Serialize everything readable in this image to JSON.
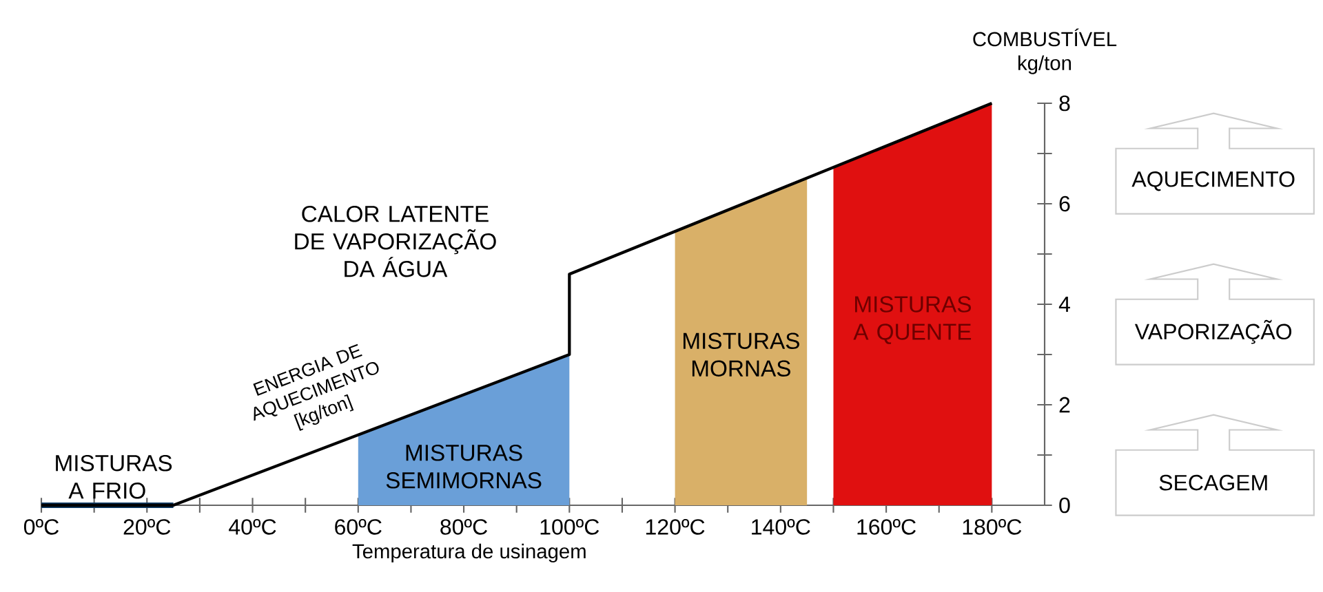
{
  "chart_data": {
    "type": "area",
    "xlabel": "Temperatura de usinagem",
    "ylabel": "COMBUSTÍVEL kg/ton",
    "xlim": [
      0,
      190
    ],
    "ylim": [
      0,
      8
    ],
    "xticks": [
      {
        "value": 0,
        "label": "0ºC"
      },
      {
        "value": 10,
        "label": null
      },
      {
        "value": 20,
        "label": "20ºC"
      },
      {
        "value": 30,
        "label": null
      },
      {
        "value": 40,
        "label": "40ºC"
      },
      {
        "value": 50,
        "label": null
      },
      {
        "value": 60,
        "label": "60ºC"
      },
      {
        "value": 70,
        "label": null
      },
      {
        "value": 80,
        "label": "80ºC"
      },
      {
        "value": 90,
        "label": null
      },
      {
        "value": 100,
        "label": "100ºC"
      },
      {
        "value": 110,
        "label": null
      },
      {
        "value": 120,
        "label": "120ºC"
      },
      {
        "value": 130,
        "label": null
      },
      {
        "value": 140,
        "label": "140ºC"
      },
      {
        "value": 150,
        "label": null
      },
      {
        "value": 160,
        "label": "160ºC"
      },
      {
        "value": 170,
        "label": null
      },
      {
        "value": 180,
        "label": "180ºC"
      }
    ],
    "yticks": [
      0,
      {
        "value": 1,
        "label": null
      },
      2,
      {
        "value": 3,
        "label": null
      },
      4,
      {
        "value": 5,
        "label": null
      },
      6,
      {
        "value": 7,
        "label": null
      },
      8
    ],
    "series": [
      {
        "name": "MISTURAS A FRIO",
        "type": "line",
        "color": "#0d3b66",
        "x": [
          0,
          25
        ],
        "values": [
          0,
          0
        ]
      },
      {
        "type": "line",
        "color": "#000000",
        "x": [
          0,
          25,
          100,
          100,
          180
        ],
        "values": [
          0,
          0,
          3.0,
          4.6,
          8.0
        ]
      },
      {
        "name": "MISTURAS SEMIMORNAS",
        "color": "#6a9fd8",
        "x": [
          60,
          100
        ],
        "values": [
          1.4,
          3.0
        ]
      },
      {
        "name": "MISTURAS MORNAS",
        "color": "#d9b068",
        "x": [
          120,
          145
        ],
        "values": [
          5.45,
          6.5
        ]
      },
      {
        "name": "MISTURAS A QUENTE",
        "color": "#e01010",
        "x": [
          150,
          180
        ],
        "values": [
          6.7,
          8.0
        ]
      }
    ],
    "annotations": [
      "ENERGIA DE AQUECIMENTO [kg/ton]",
      "CALOR LATENTE DE VAPORIZAÇÃO DA ÁGUA",
      "AQUECIMENTO",
      "VAPORIZAÇÃO",
      "SECAGEM"
    ],
    "marker": "none",
    "line_style": "solid"
  }
}
